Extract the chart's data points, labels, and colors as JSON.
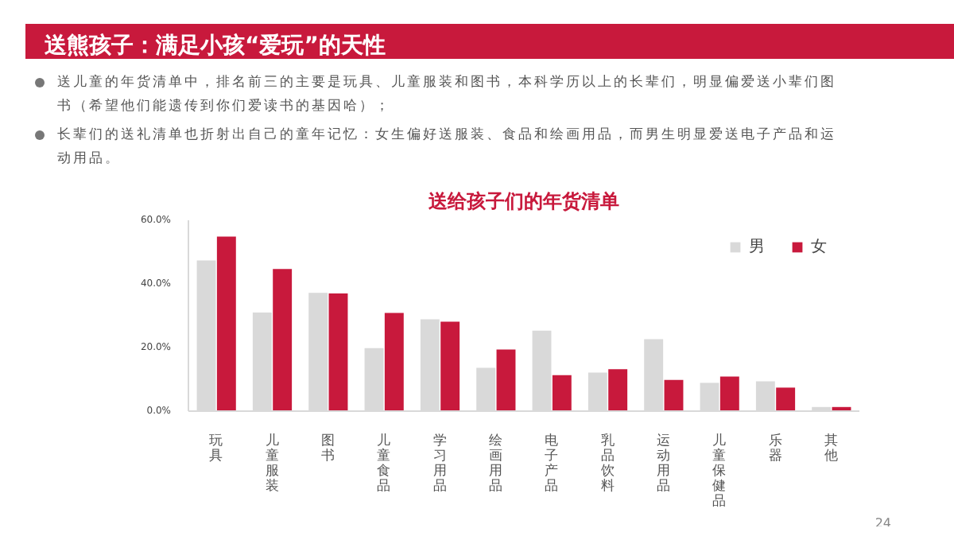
{
  "chart_data": {
    "type": "bar",
    "title": "送熊孩子：满足小孩“爱玩”的天性",
    "subtitle": "送给孩子们的年货清单",
    "annotations": [
      "送儿童的年货清单中，排名前三的主要是玩具、儿童服装和图书，本科学历以上的长辈们，明显偏爱送小辈们图书（希望他们能遗传到你们爱读书的基因哈）；",
      "长辈们的送礼清单也折射出自己的童年记忆：女生偏好送服装、食品和绘画用品，而男生明显爱送电子产品和运动用品。",
      "24"
    ],
    "categories": [
      "玩具",
      "儿童服装",
      "图书",
      "儿童食品",
      "学习用品",
      "绘画用品",
      "电子产品",
      "乳品饮料",
      "运动用品",
      "儿童保健品",
      "乐器",
      "其他"
    ],
    "series": [
      {
        "name": "男",
        "color": "#d9d9d9",
        "values": [
          47.4,
          31,
          37.2,
          19.8,
          28.9,
          13.6,
          25.3,
          12.1,
          22.6,
          8.9,
          9.4,
          1.3
        ]
      },
      {
        "name": "女",
        "color": "#c8193c",
        "values": [
          54.9,
          44.7,
          37,
          30.9,
          28.1,
          19.4,
          11.3,
          13.2,
          9.8,
          10.9,
          7.4,
          1.3
        ]
      }
    ],
    "ylim": [
      0,
      60
    ],
    "yticks": [
      {
        "value": 0,
        "label": "0.0%"
      },
      {
        "value": 20,
        "label": "20.0%"
      },
      {
        "value": 40,
        "label": "40.0%"
      },
      {
        "value": 60,
        "label": "60.0%"
      }
    ],
    "grid": false,
    "legend": "top right"
  }
}
